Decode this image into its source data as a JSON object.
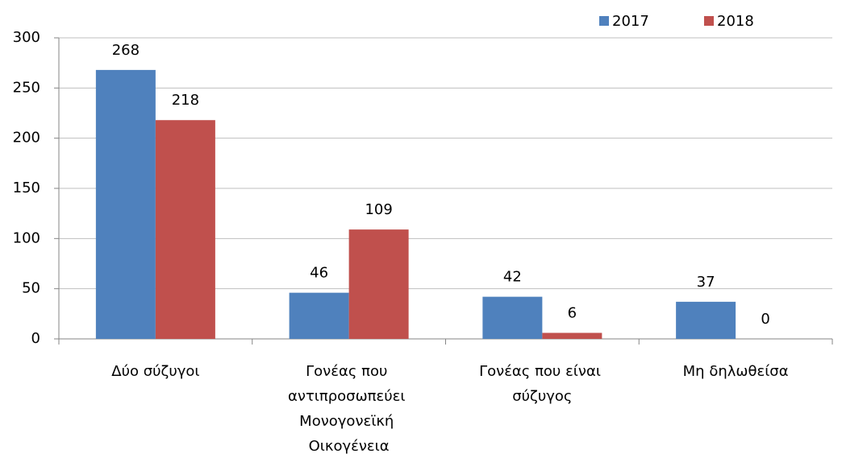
{
  "chart_data": {
    "type": "bar",
    "categories": [
      "Δύο σύζυγοι",
      "Γονέας που αντιπροσωπεύει Μονογονεϊκή Οικογένεια",
      "Γονέας που είναι σύζυγος",
      "Μη δηλωθείσα"
    ],
    "series": [
      {
        "name": "2017",
        "color": "#4f81bd",
        "values": [
          268,
          46,
          42,
          37
        ]
      },
      {
        "name": "2018",
        "color": "#c0504d",
        "values": [
          218,
          109,
          6,
          0
        ]
      }
    ],
    "ylim": [
      0,
      300
    ],
    "yticks": [
      0,
      50,
      100,
      150,
      200,
      250,
      300
    ],
    "grid": true,
    "legend": "top-right"
  }
}
